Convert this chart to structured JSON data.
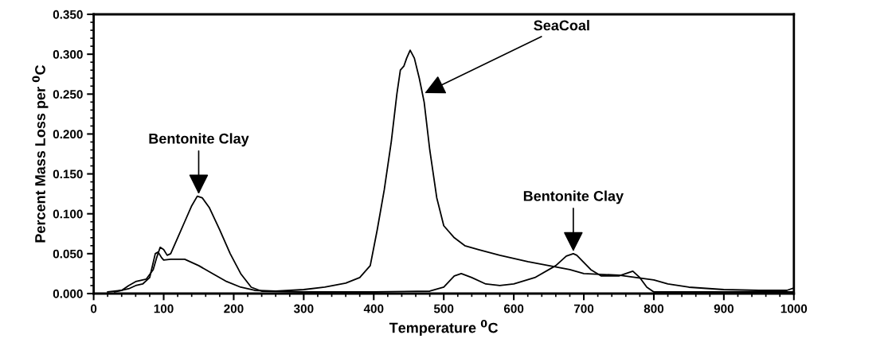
{
  "chart_data": {
    "type": "line",
    "xlabel": "Temperature $^{0}$C",
    "ylabel": "Percent Mass Loss per $^{0}$C",
    "xlim": [
      0,
      1000
    ],
    "xticks": [
      0,
      100,
      200,
      300,
      400,
      500,
      600,
      700,
      800,
      900,
      1000
    ],
    "ylim": [
      0,
      0.35
    ],
    "yticks": [
      {
        "value": 0,
        "label": "0.000"
      },
      {
        "value": 0.05,
        "label": "0.050"
      },
      {
        "value": 0.1,
        "label": "0.100"
      },
      {
        "value": 0.15,
        "label": "0.150"
      },
      {
        "value": 0.2,
        "label": "0.200"
      },
      {
        "value": 0.25,
        "label": "0.250"
      },
      {
        "value": 0.3,
        "label": "0.300"
      },
      {
        "value": 0.35,
        "label": "0.350"
      }
    ],
    "grid": false,
    "legend": false,
    "marker": "none",
    "line_style": "solid",
    "series": [
      {
        "color": "#000000",
        "x": [
          20,
          40,
          50,
          60,
          75,
          85,
          90,
          95,
          100,
          105,
          110,
          120,
          130,
          140,
          148,
          155,
          165,
          180,
          195,
          210,
          225,
          240,
          300,
          400,
          480,
          500,
          515,
          525,
          540,
          560,
          580,
          600,
          630,
          660,
          675,
          685,
          690,
          710,
          725,
          750,
          770,
          780,
          790,
          800,
          850,
          1000
        ],
        "values": [
          0.002,
          0.004,
          0.01,
          0.015,
          0.018,
          0.03,
          0.045,
          0.058,
          0.055,
          0.048,
          0.05,
          0.07,
          0.09,
          0.11,
          0.122,
          0.12,
          0.108,
          0.08,
          0.05,
          0.025,
          0.008,
          0.003,
          0.002,
          0.002,
          0.003,
          0.008,
          0.022,
          0.025,
          0.02,
          0.012,
          0.01,
          0.012,
          0.02,
          0.035,
          0.047,
          0.05,
          0.048,
          0.03,
          0.022,
          0.022,
          0.028,
          0.02,
          0.008,
          0.002,
          0.002,
          0.002
        ]
      },
      {
        "color": "#000000",
        "x": [
          30,
          50,
          60,
          70,
          80,
          88,
          92,
          97,
          100,
          110,
          130,
          150,
          170,
          190,
          210,
          230,
          260,
          300,
          330,
          360,
          380,
          395,
          405,
          415,
          425,
          433,
          438,
          443,
          447,
          452,
          458,
          465,
          472,
          480,
          490,
          500,
          515,
          530,
          550,
          580,
          620,
          650,
          680,
          700,
          750,
          800,
          820,
          850,
          900,
          950,
          990,
          1000
        ],
        "values": [
          0.002,
          0.006,
          0.01,
          0.012,
          0.02,
          0.05,
          0.052,
          0.045,
          0.042,
          0.043,
          0.043,
          0.035,
          0.025,
          0.015,
          0.008,
          0.004,
          0.003,
          0.005,
          0.008,
          0.013,
          0.02,
          0.035,
          0.08,
          0.13,
          0.19,
          0.25,
          0.28,
          0.285,
          0.295,
          0.305,
          0.295,
          0.27,
          0.24,
          0.18,
          0.12,
          0.085,
          0.07,
          0.06,
          0.055,
          0.048,
          0.04,
          0.035,
          0.03,
          0.025,
          0.023,
          0.017,
          0.012,
          0.008,
          0.005,
          0.004,
          0.004,
          0.007
        ]
      }
    ],
    "annotations": [
      {
        "text": "Bentonite Clay",
        "x": 150,
        "y": 0.122
      },
      {
        "text": "SeaCoal",
        "x": 470,
        "y": 0.25
      },
      {
        "text": "Bentonite Clay",
        "x": 685,
        "y": 0.05
      }
    ]
  }
}
